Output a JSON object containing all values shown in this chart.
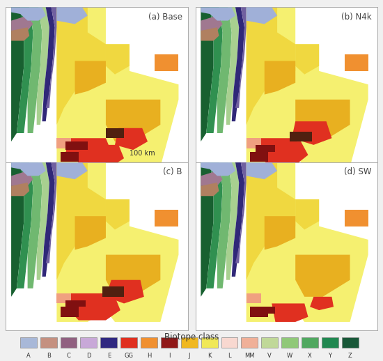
{
  "panel_titles": [
    "(a) Base",
    "(b) N4k",
    "(c) B",
    "(d) SW"
  ],
  "legend_title": "Biotope class",
  "legend_labels": [
    "A",
    "B",
    "C",
    "D",
    "E",
    "GG",
    "H",
    "I",
    "J",
    "K",
    "L",
    "MM",
    "V",
    "W",
    "X",
    "Y",
    "Z"
  ],
  "legend_colors": [
    "#a8b8d8",
    "#c49080",
    "#906080",
    "#c8a8d8",
    "#302880",
    "#e03020",
    "#f09030",
    "#901818",
    "#f0b820",
    "#f0e858",
    "#f8d8d0",
    "#f0b098",
    "#c0d898",
    "#90c878",
    "#50a860",
    "#208850",
    "#185838"
  ],
  "scale_bar_text": "100 km",
  "bg_color": "#f0f0f0",
  "panel_bg": "#ffffff"
}
